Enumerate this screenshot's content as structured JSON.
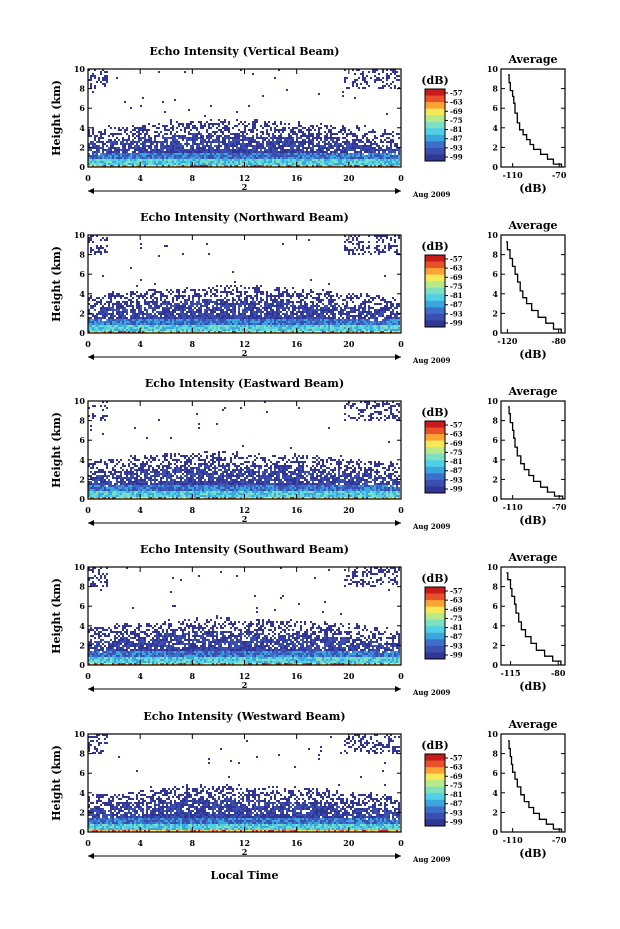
{
  "chart_data": [
    {
      "type": "heatmap",
      "title": "Echo Intensity (Vertical Beam)",
      "ylabel": "Height (km)",
      "ylim": [
        0,
        10
      ],
      "xlim": [
        0,
        24
      ],
      "x_ticks": [
        "0",
        "4",
        "8",
        "12",
        "16",
        "20",
        "0"
      ],
      "y_ticks": [
        "0",
        "2",
        "4",
        "6",
        "8",
        "10"
      ],
      "day_label": "2",
      "date_label": "Aug 2009",
      "colorbar": {
        "label": "(dB)",
        "ticks": [
          "-57",
          "-63",
          "-69",
          "-75",
          "-81",
          "-87",
          "-93",
          "-99"
        ]
      },
      "profile": {
        "title": "Average",
        "xlabel": "(dB)",
        "x_ticks": [
          "-110",
          "-70"
        ],
        "y_ticks": [
          "0",
          "2",
          "4",
          "6",
          "8",
          "10"
        ],
        "xlim": [
          -120,
          -65
        ],
        "values": [
          [
            -68,
            0
          ],
          [
            -75,
            0.3
          ],
          [
            -80,
            0.8
          ],
          [
            -86,
            1.3
          ],
          [
            -92,
            1.8
          ],
          [
            -95,
            2.3
          ],
          [
            -98,
            2.8
          ],
          [
            -101,
            3.3
          ],
          [
            -104,
            3.8
          ],
          [
            -106,
            4.5
          ],
          [
            -108,
            5.5
          ],
          [
            -109,
            6.5
          ],
          [
            -110,
            7.2
          ],
          [
            -112,
            7.8
          ],
          [
            -113,
            8.6
          ],
          [
            -114,
            9.4
          ]
        ]
      }
    },
    {
      "type": "heatmap",
      "title": "Echo Intensity (Northward Beam)",
      "ylabel": "Height (km)",
      "ylim": [
        0,
        10
      ],
      "xlim": [
        0,
        24
      ],
      "x_ticks": [
        "0",
        "4",
        "8",
        "12",
        "16",
        "20",
        "0"
      ],
      "y_ticks": [
        "0",
        "2",
        "4",
        "6",
        "8",
        "10"
      ],
      "day_label": "2",
      "date_label": "Aug 2009",
      "colorbar": {
        "label": "(dB)",
        "ticks": [
          "-57",
          "-63",
          "-69",
          "-75",
          "-81",
          "-87",
          "-93",
          "-99"
        ]
      },
      "profile": {
        "title": "Average",
        "xlabel": "(dB)",
        "x_ticks": [
          "-120",
          "-80"
        ],
        "y_ticks": [
          "0",
          "2",
          "4",
          "6",
          "8",
          "10"
        ],
        "xlim": [
          -125,
          -75
        ],
        "values": [
          [
            -78,
            0
          ],
          [
            -84,
            0.4
          ],
          [
            -90,
            1.0
          ],
          [
            -96,
            1.6
          ],
          [
            -101,
            2.3
          ],
          [
            -105,
            3.0
          ],
          [
            -108,
            3.6
          ],
          [
            -110,
            4.3
          ],
          [
            -112,
            5.2
          ],
          [
            -114,
            6.0
          ],
          [
            -116,
            6.8
          ],
          [
            -118,
            7.6
          ],
          [
            -120,
            8.5
          ],
          [
            -121,
            9.3
          ]
        ]
      }
    },
    {
      "type": "heatmap",
      "title": "Echo Intensity (Eastward Beam)",
      "ylabel": "Height (km)",
      "ylim": [
        0,
        10
      ],
      "xlim": [
        0,
        24
      ],
      "x_ticks": [
        "0",
        "4",
        "8",
        "12",
        "16",
        "20",
        "0"
      ],
      "y_ticks": [
        "0",
        "2",
        "4",
        "6",
        "8",
        "10"
      ],
      "day_label": "2",
      "date_label": "Aug 2009",
      "colorbar": {
        "label": "(dB)",
        "ticks": [
          "-57",
          "-63",
          "-69",
          "-75",
          "-81",
          "-87",
          "-93",
          "-99"
        ]
      },
      "profile": {
        "title": "Average",
        "xlabel": "(dB)",
        "x_ticks": [
          "-110",
          "-70"
        ],
        "y_ticks": [
          "0",
          "2",
          "4",
          "6",
          "8",
          "10"
        ],
        "xlim": [
          -120,
          -65
        ],
        "values": [
          [
            -67,
            0
          ],
          [
            -74,
            0.3
          ],
          [
            -80,
            0.7
          ],
          [
            -86,
            1.2
          ],
          [
            -92,
            1.8
          ],
          [
            -96,
            2.4
          ],
          [
            -100,
            3.0
          ],
          [
            -103,
            3.6
          ],
          [
            -106,
            4.4
          ],
          [
            -108,
            5.3
          ],
          [
            -109,
            6.2
          ],
          [
            -110,
            7.0
          ],
          [
            -112,
            7.8
          ],
          [
            -113,
            8.7
          ],
          [
            -114,
            9.4
          ]
        ]
      }
    },
    {
      "type": "heatmap",
      "title": "Echo Intensity (Southward Beam)",
      "ylabel": "Height (km)",
      "ylim": [
        0,
        10
      ],
      "xlim": [
        0,
        24
      ],
      "x_ticks": [
        "0",
        "4",
        "8",
        "12",
        "16",
        "20",
        "0"
      ],
      "y_ticks": [
        "0",
        "2",
        "4",
        "6",
        "8",
        "10"
      ],
      "day_label": "2",
      "date_label": "Aug 2009",
      "colorbar": {
        "label": "(dB)",
        "ticks": [
          "-57",
          "-63",
          "-69",
          "-75",
          "-81",
          "-87",
          "-93",
          "-99"
        ]
      },
      "profile": {
        "title": "Average",
        "xlabel": "(dB)",
        "x_ticks": [
          "-115",
          "-80"
        ],
        "y_ticks": [
          "0",
          "2",
          "4",
          "6",
          "8",
          "10"
        ],
        "xlim": [
          -122,
          -75
        ],
        "values": [
          [
            -78,
            0
          ],
          [
            -84,
            0.4
          ],
          [
            -90,
            0.9
          ],
          [
            -96,
            1.5
          ],
          [
            -100,
            2.2
          ],
          [
            -104,
            2.9
          ],
          [
            -107,
            3.6
          ],
          [
            -109,
            4.4
          ],
          [
            -111,
            5.3
          ],
          [
            -112,
            6.2
          ],
          [
            -114,
            7.0
          ],
          [
            -115,
            7.8
          ],
          [
            -117,
            8.7
          ],
          [
            -118,
            9.4
          ]
        ]
      }
    },
    {
      "type": "heatmap",
      "title": "Echo Intensity (Westward Beam)",
      "ylabel": "Height (km)",
      "xlabel": "Local Time",
      "ylim": [
        0,
        10
      ],
      "xlim": [
        0,
        24
      ],
      "x_ticks": [
        "0",
        "4",
        "8",
        "12",
        "16",
        "20",
        "0"
      ],
      "y_ticks": [
        "0",
        "2",
        "4",
        "6",
        "8",
        "10"
      ],
      "day_label": "2",
      "date_label": "Aug 2009",
      "colorbar": {
        "label": "(dB)",
        "ticks": [
          "-57",
          "-63",
          "-69",
          "-75",
          "-81",
          "-87",
          "-93",
          "-99"
        ]
      },
      "profile": {
        "title": "Average",
        "xlabel": "(dB)",
        "x_ticks": [
          "-110",
          "-70"
        ],
        "y_ticks": [
          "0",
          "2",
          "4",
          "6",
          "8",
          "10"
        ],
        "xlim": [
          -120,
          -65
        ],
        "values": [
          [
            -68,
            0
          ],
          [
            -75,
            0.3
          ],
          [
            -81,
            0.8
          ],
          [
            -87,
            1.3
          ],
          [
            -92,
            1.9
          ],
          [
            -96,
            2.5
          ],
          [
            -100,
            3.1
          ],
          [
            -103,
            3.8
          ],
          [
            -106,
            4.6
          ],
          [
            -108,
            5.4
          ],
          [
            -110,
            6.1
          ],
          [
            -111,
            6.9
          ],
          [
            -112,
            7.7
          ],
          [
            -113,
            8.5
          ],
          [
            -114,
            9.3
          ]
        ]
      }
    }
  ]
}
